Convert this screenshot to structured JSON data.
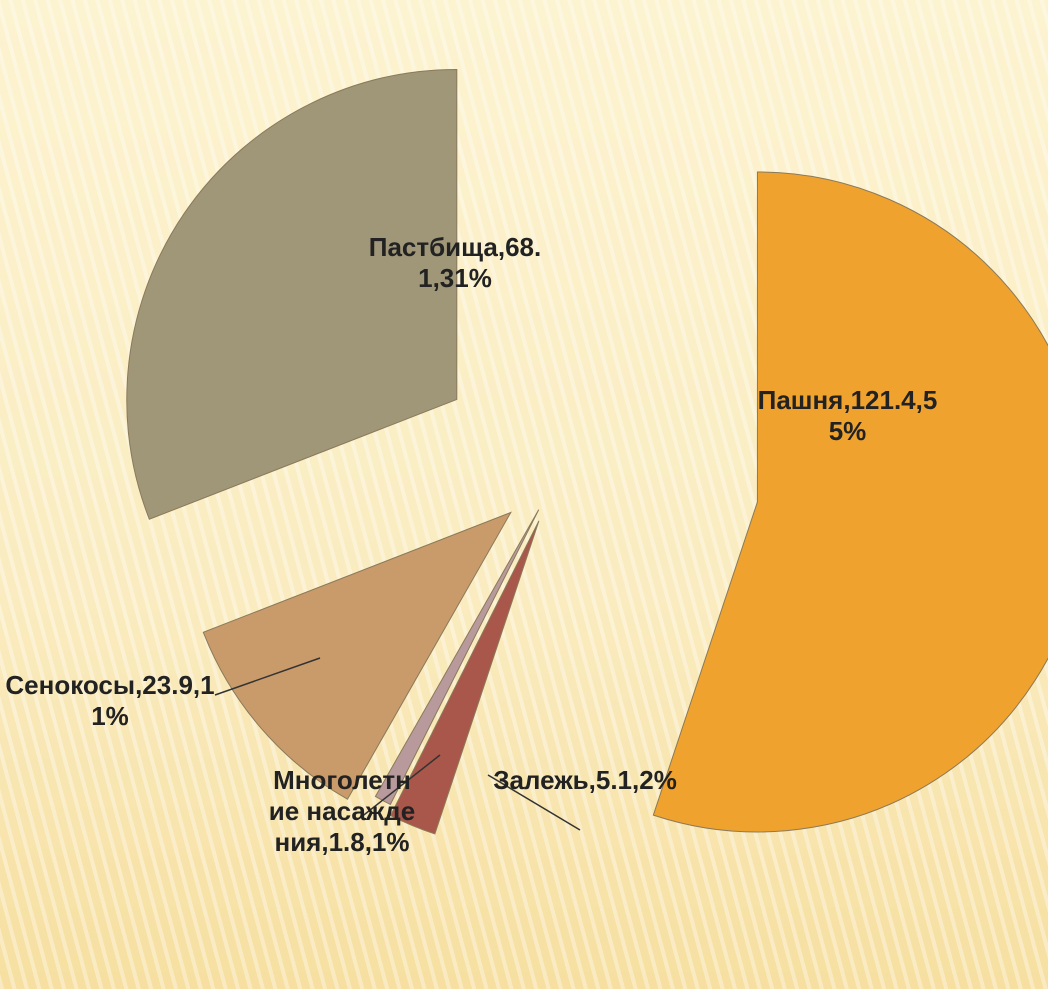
{
  "chart_data": {
    "type": "pie",
    "values": [
      121.4,
      5.1,
      1.8,
      23.9,
      68.1
    ],
    "value_labels": [
      "Пашня,121.4,55%",
      "Залежь,5.1,2%",
      "Многолетние насаждения,1.8,1%",
      "Сенокосы,23.9,11%",
      "Пастбища,68.1,31%"
    ],
    "colors": [
      "#f0a22e",
      "#a9574a",
      "#b8999c",
      "#c99a6a",
      "#a09678"
    ]
  }
}
